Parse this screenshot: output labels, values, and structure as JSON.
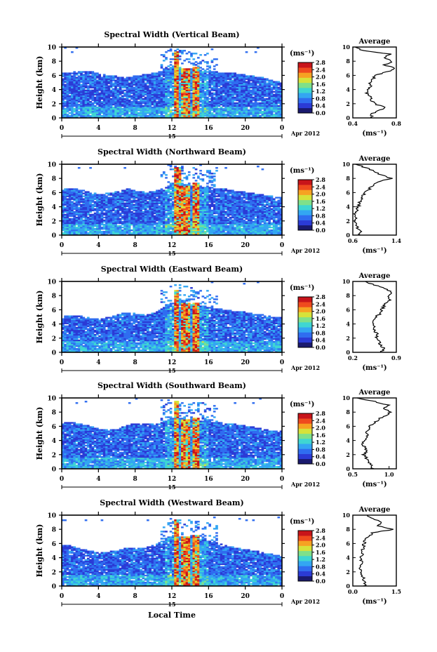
{
  "chart_data": [
    {
      "type": "heatmap",
      "title": "Spectral Width (Vertical Beam)",
      "ylabel": "Height (km)",
      "x_ticks": [
        "0",
        "4",
        "8",
        "12",
        "16",
        "20",
        "0"
      ],
      "y_ticks": [
        "0",
        "2",
        "4",
        "6",
        "8",
        "10"
      ],
      "xlim": [
        0,
        24
      ],
      "ylim": [
        0,
        10
      ],
      "date_marker": "15",
      "date_label": "Apr 2012",
      "colorbar": {
        "unit": "(ms⁻¹)",
        "ticks": [
          "0.0",
          "0.4",
          "0.8",
          "1.2",
          "1.6",
          "2.0",
          "2.4",
          "2.8"
        ],
        "range": [
          0,
          2.8
        ]
      },
      "cloud_top_km": [
        6.3,
        6.4,
        6.6,
        6.5,
        6.2,
        5.9,
        5.8,
        5.7,
        5.9,
        6.1,
        6.3,
        6.7,
        7.3,
        7.0,
        6.8,
        6.6,
        6.5,
        6.4,
        6.3,
        6.2,
        6.0,
        5.8,
        5.6,
        5.2,
        5.0
      ],
      "strong_columns": [
        {
          "t": 12.3,
          "top": 9.3,
          "w": 0.3
        },
        {
          "t": 13.3,
          "top": 7.0,
          "w": 0.45
        },
        {
          "t": 14.5,
          "top": 7.2,
          "w": 0.35
        }
      ],
      "average_profile": {
        "title": "Average",
        "xlabel": "(ms⁻¹)",
        "ylabel": "",
        "x_ticks": [
          "0.4",
          "0.8"
        ],
        "xlim": [
          0.4,
          0.8
        ],
        "y_ticks": [
          "0",
          "2",
          "4",
          "6",
          "8",
          "10"
        ],
        "ylim": [
          0,
          10
        ],
        "heights": [
          0,
          0.5,
          1,
          1.5,
          2,
          2.5,
          3,
          3.5,
          4,
          4.5,
          5,
          5.5,
          6,
          6.5,
          7,
          7.5,
          8,
          8.5,
          9,
          9.5,
          10
        ],
        "values": [
          0.58,
          0.56,
          0.63,
          0.7,
          0.6,
          0.57,
          0.56,
          0.53,
          0.54,
          0.58,
          0.55,
          0.59,
          0.6,
          0.72,
          0.78,
          0.69,
          0.76,
          0.7,
          0.74,
          0.49,
          0.42
        ]
      }
    },
    {
      "type": "heatmap",
      "title": "Spectral Width (Northward Beam)",
      "ylabel": "Height (km)",
      "x_ticks": [
        "0",
        "4",
        "8",
        "12",
        "16",
        "20",
        "0"
      ],
      "y_ticks": [
        "0",
        "2",
        "4",
        "6",
        "8",
        "10"
      ],
      "xlim": [
        0,
        24
      ],
      "ylim": [
        0,
        10
      ],
      "date_marker": "15",
      "date_label": "Apr 2012",
      "colorbar": {
        "unit": "(ms⁻¹)",
        "ticks": [
          "0.0",
          "0.4",
          "0.8",
          "1.2",
          "1.6",
          "2.0",
          "2.4",
          "2.8"
        ],
        "range": [
          0,
          2.8
        ]
      },
      "cloud_top_km": [
        6.4,
        6.6,
        6.3,
        6.0,
        5.7,
        5.9,
        6.1,
        6.5,
        6.2,
        6.0,
        6.2,
        6.6,
        7.4,
        7.2,
        7.0,
        6.8,
        6.7,
        6.5,
        6.4,
        6.2,
        6.0,
        5.8,
        5.6,
        5.4,
        5.3
      ],
      "strong_columns": [
        {
          "t": 12.4,
          "top": 9.6,
          "w": 0.35
        },
        {
          "t": 13.3,
          "top": 7.0,
          "w": 0.45
        },
        {
          "t": 14.5,
          "top": 7.3,
          "w": 0.35
        }
      ],
      "average_profile": {
        "title": "Average",
        "xlabel": "(ms⁻¹)",
        "ylabel": "",
        "x_ticks": [
          "0.6",
          "1.4"
        ],
        "xlim": [
          0.6,
          1.4
        ],
        "y_ticks": [
          "0",
          "2",
          "4",
          "6",
          "8",
          "10"
        ],
        "ylim": [
          0,
          10
        ],
        "heights": [
          0,
          0.5,
          1,
          1.5,
          2,
          2.5,
          3,
          3.5,
          4,
          4.5,
          5,
          5.5,
          6,
          6.5,
          7,
          7.5,
          8,
          8.5,
          9,
          9.5,
          10
        ],
        "values": [
          0.72,
          0.75,
          0.69,
          0.66,
          0.64,
          0.67,
          0.65,
          0.68,
          0.7,
          0.72,
          0.74,
          0.78,
          0.82,
          0.9,
          0.98,
          1.05,
          1.3,
          1.12,
          1.0,
          0.85,
          0.65
        ]
      }
    },
    {
      "type": "heatmap",
      "title": "Spectral Width (Eastward Beam)",
      "ylabel": "Height (km)",
      "x_ticks": [
        "0",
        "4",
        "8",
        "12",
        "16",
        "20",
        "0"
      ],
      "y_ticks": [
        "0",
        "2",
        "4",
        "6",
        "8",
        "10"
      ],
      "xlim": [
        0,
        24
      ],
      "ylim": [
        0,
        10
      ],
      "date_marker": "15",
      "date_label": "Apr 2012",
      "colorbar": {
        "unit": "(ms⁻¹)",
        "ticks": [
          "0.0",
          "0.4",
          "0.8",
          "1.2",
          "1.6",
          "2.0",
          "2.4",
          "2.8"
        ],
        "range": [
          0,
          2.8
        ]
      },
      "cloud_top_km": [
        5.0,
        5.2,
        5.1,
        4.8,
        4.6,
        4.9,
        5.3,
        5.6,
        5.4,
        5.2,
        5.6,
        6.3,
        7.0,
        6.9,
        6.7,
        6.5,
        6.3,
        6.1,
        5.9,
        5.7,
        5.6,
        5.4,
        5.2,
        5.0,
        4.8
      ],
      "strong_columns": [
        {
          "t": 12.3,
          "top": 8.7,
          "w": 0.3
        },
        {
          "t": 13.3,
          "top": 6.9,
          "w": 0.45
        },
        {
          "t": 14.5,
          "top": 7.0,
          "w": 0.35
        }
      ],
      "average_profile": {
        "title": "Average",
        "xlabel": "(ms⁻¹)",
        "ylabel": "",
        "x_ticks": [
          "0.2",
          "0.9"
        ],
        "xlim": [
          0.2,
          0.9
        ],
        "y_ticks": [
          "0",
          "2",
          "4",
          "6",
          "8",
          "10"
        ],
        "ylim": [
          0,
          10
        ],
        "heights": [
          0,
          0.5,
          1,
          1.5,
          2,
          2.5,
          3,
          3.5,
          4,
          4.5,
          5,
          5.5,
          6,
          6.5,
          7,
          7.5,
          8,
          8.5,
          9,
          9.5,
          10
        ],
        "values": [
          0.66,
          0.7,
          0.65,
          0.62,
          0.58,
          0.6,
          0.56,
          0.54,
          0.52,
          0.55,
          0.58,
          0.64,
          0.66,
          0.7,
          0.74,
          0.8,
          0.76,
          0.83,
          0.7,
          0.55,
          0.4
        ]
      }
    },
    {
      "type": "heatmap",
      "title": "Spectral Width (Southward Beam)",
      "ylabel": "Height (km)",
      "x_ticks": [
        "0",
        "4",
        "8",
        "12",
        "16",
        "20",
        "0"
      ],
      "y_ticks": [
        "0",
        "2",
        "4",
        "6",
        "8",
        "10"
      ],
      "xlim": [
        0,
        24
      ],
      "ylim": [
        0,
        10
      ],
      "date_marker": "15",
      "date_label": "Apr 2012",
      "colorbar": {
        "unit": "(ms⁻¹)",
        "ticks": [
          "0.0",
          "0.4",
          "0.8",
          "1.2",
          "1.6",
          "2.0",
          "2.4",
          "2.8"
        ],
        "range": [
          0,
          2.8
        ]
      },
      "cloud_top_km": [
        6.4,
        6.5,
        6.3,
        5.9,
        5.6,
        5.4,
        5.6,
        6.1,
        6.4,
        6.3,
        6.2,
        6.6,
        7.2,
        7.1,
        6.9,
        6.8,
        6.7,
        6.5,
        6.3,
        6.2,
        6.0,
        5.8,
        5.5,
        5.3,
        5.2
      ],
      "strong_columns": [
        {
          "t": 12.4,
          "top": 9.5,
          "w": 0.3
        },
        {
          "t": 13.3,
          "top": 7.0,
          "w": 0.45
        },
        {
          "t": 14.5,
          "top": 7.1,
          "w": 0.35
        }
      ],
      "average_profile": {
        "title": "Average",
        "xlabel": "(ms⁻¹)",
        "ylabel": "",
        "x_ticks": [
          "0.5",
          "1.0"
        ],
        "xlim": [
          0.5,
          1.1
        ],
        "y_ticks": [
          "0",
          "2",
          "4",
          "6",
          "8",
          "10"
        ],
        "ylim": [
          0,
          10
        ],
        "heights": [
          0,
          0.5,
          1,
          1.5,
          2,
          2.5,
          3,
          3.5,
          4,
          4.5,
          5,
          5.5,
          6,
          6.5,
          7,
          7.5,
          8,
          8.5,
          9,
          9.5,
          10
        ],
        "values": [
          0.78,
          0.76,
          0.72,
          0.69,
          0.65,
          0.7,
          0.67,
          0.64,
          0.66,
          0.7,
          0.69,
          0.72,
          0.74,
          0.8,
          0.86,
          0.95,
          1.02,
          0.92,
          0.98,
          0.8,
          0.56
        ]
      }
    },
    {
      "type": "heatmap",
      "title": "Spectral Width (Westward Beam)",
      "ylabel": "Height (km)",
      "xlabel": "Local Time",
      "x_ticks": [
        "0",
        "4",
        "8",
        "12",
        "16",
        "20",
        "0"
      ],
      "y_ticks": [
        "0",
        "2",
        "4",
        "6",
        "8",
        "10"
      ],
      "xlim": [
        0,
        24
      ],
      "ylim": [
        0,
        10
      ],
      "date_marker": "15",
      "date_label": "Apr 2012",
      "colorbar": {
        "unit": "(ms⁻¹)",
        "ticks": [
          "0.0",
          "0.4",
          "0.8",
          "1.2",
          "1.6",
          "2.0",
          "2.4",
          "2.8"
        ],
        "range": [
          0,
          2.8
        ]
      },
      "cloud_top_km": [
        5.8,
        5.6,
        5.2,
        4.9,
        4.6,
        4.8,
        5.0,
        5.4,
        5.2,
        5.3,
        5.8,
        6.4,
        7.1,
        6.9,
        6.7,
        6.5,
        6.3,
        5.9,
        5.6,
        5.3,
        5.1,
        4.9,
        4.6,
        4.4,
        4.3
      ],
      "strong_columns": [
        {
          "t": 12.3,
          "top": 9.3,
          "w": 0.3
        },
        {
          "t": 13.3,
          "top": 7.0,
          "w": 0.45
        },
        {
          "t": 14.5,
          "top": 7.2,
          "w": 0.35
        }
      ],
      "average_profile": {
        "title": "Average",
        "xlabel": "(ms⁻¹)",
        "ylabel": "",
        "x_ticks": [
          "0.0",
          "1.5"
        ],
        "xlim": [
          0.0,
          1.5
        ],
        "y_ticks": [
          "0",
          "2",
          "4",
          "6",
          "8",
          "10"
        ],
        "ylim": [
          0,
          10
        ],
        "heights": [
          0,
          0.5,
          1,
          1.5,
          2,
          2.5,
          3,
          3.5,
          4,
          4.5,
          5,
          5.5,
          6,
          6.5,
          7,
          7.5,
          8,
          8.5,
          9,
          9.5,
          10
        ],
        "values": [
          0.4,
          0.42,
          0.38,
          0.35,
          0.3,
          0.27,
          0.26,
          0.3,
          0.28,
          0.31,
          0.33,
          0.36,
          0.38,
          0.42,
          0.55,
          0.68,
          1.4,
          0.9,
          1.0,
          0.7,
          0.5
        ]
      }
    }
  ],
  "figure": {
    "xlabel": "Local Time",
    "colormap": [
      "#1a1a6e",
      "#2b3bd6",
      "#2f6df0",
      "#33a6f2",
      "#3fd6d2",
      "#7fe08a",
      "#d6e23a",
      "#f6a222",
      "#ef4a1e",
      "#c8141a"
    ]
  }
}
